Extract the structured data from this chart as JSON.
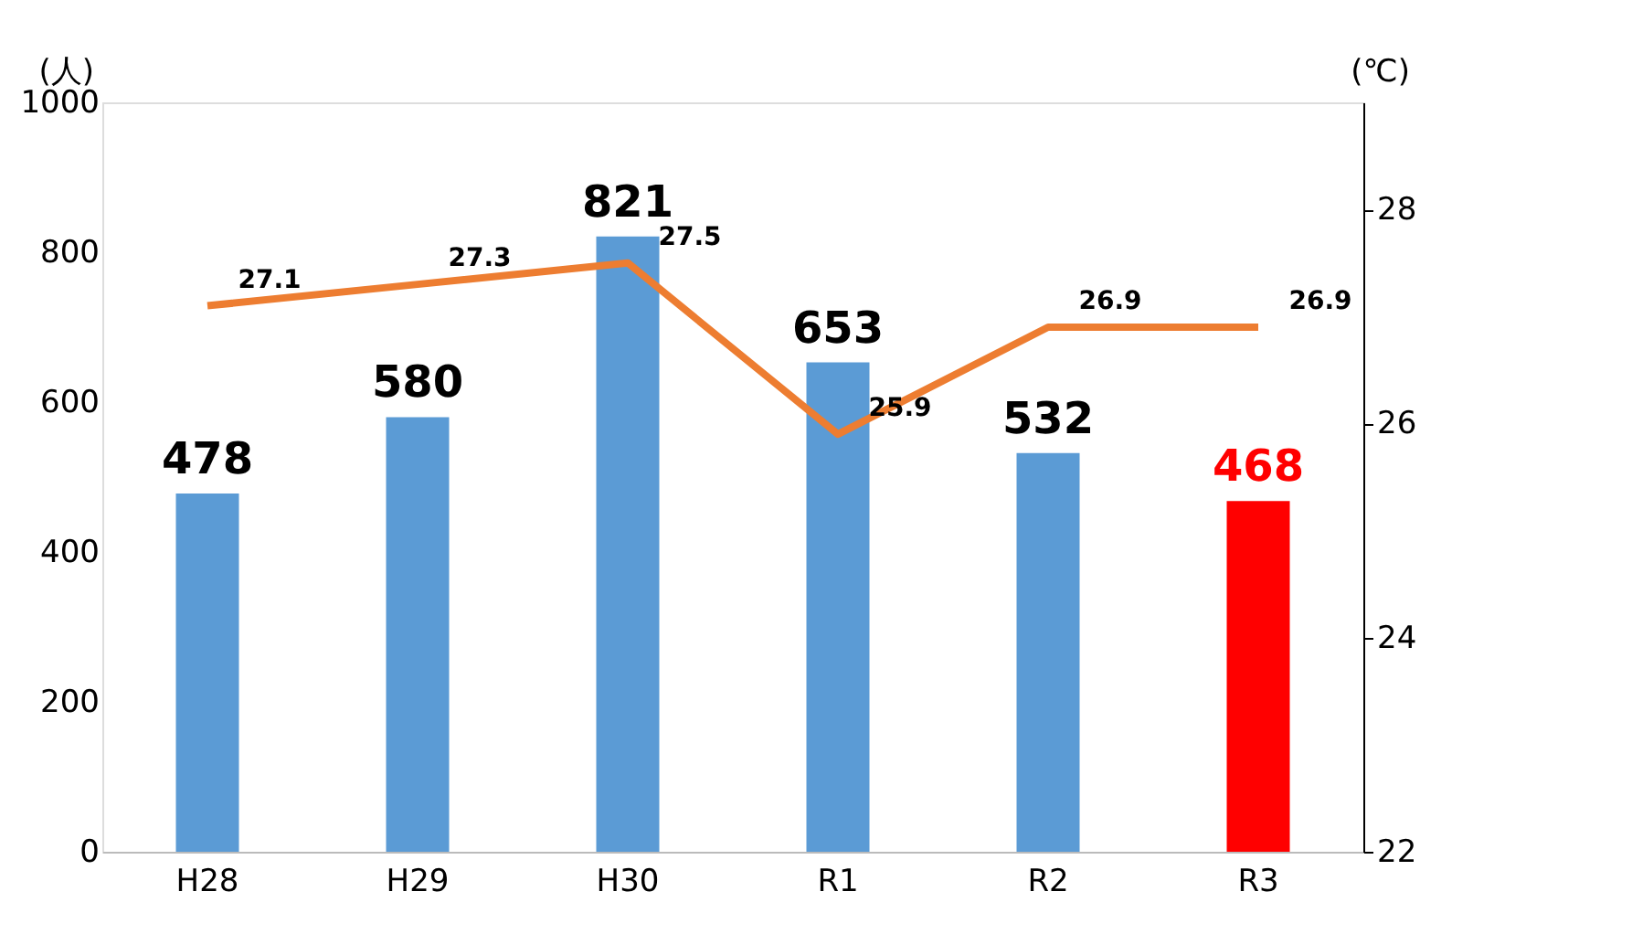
{
  "chart_data": {
    "type": "bar",
    "categories": [
      "H28",
      "H29",
      "H30",
      "R1",
      "R2",
      "R3"
    ],
    "ylabel": "(人)",
    "y2label": "(℃)",
    "ylim": [
      0,
      1000
    ],
    "yticks": [
      0,
      200,
      400,
      600,
      800,
      1000
    ],
    "y2lim": [
      22,
      29
    ],
    "y2ticks": [
      22,
      24,
      26,
      28
    ],
    "series": [
      {
        "values": [
          478,
          580,
          821,
          653,
          532,
          468
        ],
        "colors": [
          "#5b9bd5",
          "#5b9bd5",
          "#5b9bd5",
          "#5b9bd5",
          "#5b9bd5",
          "#ff0000"
        ]
      },
      {
        "type": "line",
        "axis": "y2",
        "color": "#ed7d31",
        "values": [
          27.1,
          27.3,
          27.5,
          25.9,
          26.9,
          26.9
        ]
      }
    ],
    "data_labels": true,
    "grid": false
  }
}
